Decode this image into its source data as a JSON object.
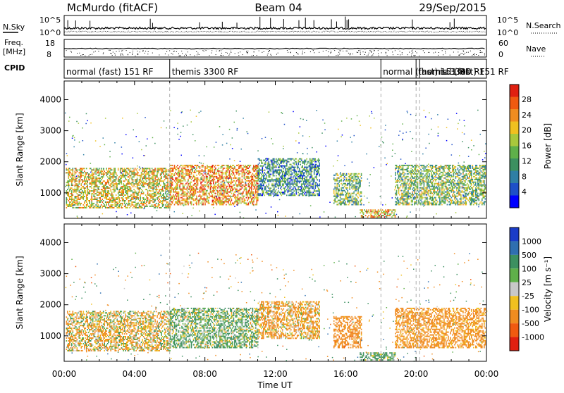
{
  "header": {
    "title_left": "McMurdo (fitACF)",
    "title_center": "Beam 04",
    "title_right": "29/Sep/2015"
  },
  "top_panels": {
    "nsky_label": "N.Sky",
    "nsearch_label": "N.Search",
    "nsky_ticks": [
      "10^5",
      "10^0"
    ],
    "nsky_right_ticks": [
      "10^5",
      "10^0"
    ],
    "freq_label": "Freq.",
    "freq_unit": "[MHz]",
    "freq_ticks": [
      "18",
      "8"
    ],
    "nave_label": "Nave",
    "nave_ticks": [
      "60",
      "0"
    ],
    "cpid_label": "CPID",
    "cpid_segments": [
      {
        "text": "normal (fast) 151 RF",
        "start_hour": 0.0
      },
      {
        "text": "themis 3300 RF",
        "start_hour": 6.0
      },
      {
        "text": "normal (fast) 151 RF",
        "start_hour": 18.0
      },
      {
        "text": "themis 3300 RF",
        "start_hour": 20.0
      },
      {
        "text": "normal (fast) 151 RF",
        "start_hour": 20.2
      }
    ],
    "cpid_boundaries_hour": [
      6.0,
      18.0,
      20.0,
      20.2
    ]
  },
  "chart_data": [
    {
      "type": "heatmap",
      "name": "power",
      "ylabel": "Slant Range [km]",
      "xlabel": "Time UT",
      "xlim": [
        0,
        24
      ],
      "ylim": [
        180,
        4600
      ],
      "yticks": [
        "1000",
        "2000",
        "3000",
        "4000"
      ],
      "xticks": [
        "00:00",
        "04:00",
        "08:00",
        "12:00",
        "16:00",
        "20:00",
        "00:00"
      ],
      "colorbar": {
        "label": "Power [dB]",
        "ticks": [
          "4",
          "8",
          "12",
          "16",
          "20",
          "24",
          "28"
        ],
        "colors": [
          "#0000ff",
          "#1e50c8",
          "#2f7fa5",
          "#3c9060",
          "#5fb04a",
          "#a8c83c",
          "#f0c020",
          "#f08c20",
          "#f05a10",
          "#e02010"
        ]
      },
      "echo_regions": [
        {
          "t0": 0.1,
          "t1": 6.0,
          "r0": 500,
          "r1": 1800,
          "level": 18
        },
        {
          "t0": 6.0,
          "t1": 11.0,
          "r0": 600,
          "r1": 1900,
          "level": 22
        },
        {
          "t0": 11.0,
          "t1": 14.5,
          "r0": 900,
          "r1": 2100,
          "level": 10
        },
        {
          "t0": 15.3,
          "t1": 16.9,
          "r0": 600,
          "r1": 1600,
          "level": 13
        },
        {
          "t0": 16.8,
          "t1": 18.8,
          "r0": 200,
          "r1": 450,
          "level": 20
        },
        {
          "t0": 18.8,
          "t1": 23.9,
          "r0": 600,
          "r1": 1900,
          "level": 14
        }
      ]
    },
    {
      "type": "heatmap",
      "name": "velocity",
      "ylabel": "Slant Range [km]",
      "xlabel": "Time UT",
      "xlim": [
        0,
        24
      ],
      "ylim": [
        180,
        4600
      ],
      "yticks": [
        "1000",
        "2000",
        "3000",
        "4000"
      ],
      "xticks": [
        "00:00",
        "04:00",
        "08:00",
        "12:00",
        "16:00",
        "20:00",
        "00:00"
      ],
      "colorbar": {
        "label": "Velocity [m s⁻¹]",
        "ticks": [
          "1000",
          "500",
          "100",
          "25",
          "-25",
          "-100",
          "-500",
          "-1000"
        ],
        "colors": [
          "#1a3cc8",
          "#2f6fb0",
          "#3c9060",
          "#5fb04a",
          "#c8c8c8",
          "#f0c020",
          "#f08c20",
          "#f05a10",
          "#e02010"
        ]
      },
      "echo_regions": [
        {
          "t0": 0.1,
          "t1": 6.0,
          "r0": 500,
          "r1": 1800,
          "level": -80
        },
        {
          "t0": 6.0,
          "t1": 11.0,
          "r0": 600,
          "r1": 1900,
          "level": 110
        },
        {
          "t0": 11.0,
          "t1": 14.5,
          "r0": 900,
          "r1": 2100,
          "level": -150
        },
        {
          "t0": 15.3,
          "t1": 16.9,
          "r0": 600,
          "r1": 1600,
          "level": -300
        },
        {
          "t0": 16.8,
          "t1": 18.8,
          "r0": 200,
          "r1": 450,
          "level": 120
        },
        {
          "t0": 18.8,
          "t1": 23.9,
          "r0": 600,
          "r1": 1900,
          "level": -250
        }
      ]
    }
  ]
}
